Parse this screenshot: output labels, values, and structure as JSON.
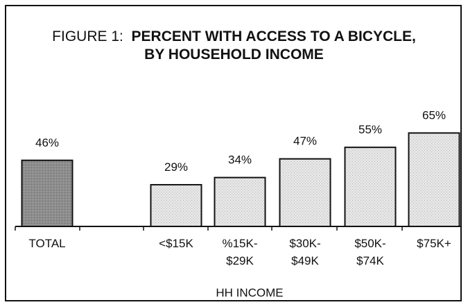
{
  "chart_data": {
    "type": "bar",
    "title_prefix": "FIGURE 1:",
    "title_line1": "PERCENT WITH ACCESS TO A BICYCLE,",
    "title_line2": "BY HOUSEHOLD INCOME",
    "xlabel": "HH INCOME",
    "ylabel": "",
    "ylim": [
      0,
      70
    ],
    "grid": false,
    "legend": "none",
    "categories": [
      "TOTAL",
      "<$15K",
      "%15K-\n$29K",
      "$30K-\n$49K",
      "$50K-\n$74K",
      "$75K+"
    ],
    "values": [
      46,
      29,
      34,
      47,
      55,
      65
    ],
    "data_labels": [
      "46%",
      "29%",
      "34%",
      "47%",
      "55%",
      "65%"
    ],
    "colors": {
      "total_bar": "#8c8c8c",
      "income_bar": "#e2e2e2",
      "bar_outline": "#111111"
    }
  }
}
